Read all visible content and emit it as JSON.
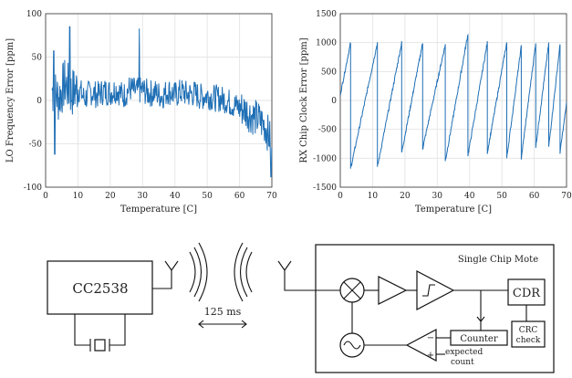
{
  "colors": {
    "series": "#1f6fb5",
    "ink": "#111111"
  },
  "chart_data": [
    {
      "type": "line",
      "title": "",
      "xlabel": "Temperature [C]",
      "ylabel": "LO Frequency Error [ppm]",
      "xlim": [
        0,
        70
      ],
      "ylim": [
        -100,
        100
      ],
      "xticks": [
        "0",
        "10",
        "20",
        "30",
        "40",
        "50",
        "60",
        "70"
      ],
      "yticks": [
        "100",
        "50",
        "0",
        "-50",
        "-100"
      ],
      "grid": true,
      "series": [
        {
          "x": [
            2,
            4,
            6,
            8,
            10,
            12,
            14,
            16,
            18,
            20,
            22,
            24,
            26,
            28,
            30,
            32,
            34,
            36,
            38,
            40,
            42,
            44,
            46,
            48,
            50,
            52,
            54,
            56,
            58,
            60,
            62,
            64,
            66,
            68,
            70
          ],
          "y": [
            12,
            3,
            20,
            8,
            15,
            2,
            10,
            6,
            11,
            9,
            13,
            5,
            14,
            10,
            12,
            8,
            9,
            5,
            11,
            6,
            10,
            7,
            8,
            4,
            6,
            3,
            2,
            0,
            -5,
            -8,
            -12,
            -18,
            -22,
            -30,
            -50
          ],
          "spikes": [
            {
              "x": 2.5,
              "y": 57
            },
            {
              "x": 2.8,
              "y": -62
            },
            {
              "x": 7.5,
              "y": 85
            },
            {
              "x": 29,
              "y": 83
            },
            {
              "x": 69.7,
              "y": -88
            }
          ]
        }
      ]
    },
    {
      "type": "line",
      "title": "",
      "xlabel": "Temperature [C]",
      "ylabel": "RX Chip Clock Error [ppm]",
      "xlim": [
        0,
        70
      ],
      "ylim": [
        -1500,
        1500
      ],
      "xticks": [
        "0",
        "10",
        "20",
        "30",
        "40",
        "50",
        "60",
        "70"
      ],
      "yticks": [
        "1500",
        "1000",
        "500",
        "0",
        "-500",
        "-1000",
        "-1500"
      ],
      "grid": true,
      "series": [
        {
          "resets": [
            {
              "x": 3.2,
              "from": 1000,
              "to": -1180
            },
            {
              "x": 11.5,
              "from": 1000,
              "to": -1150
            },
            {
              "x": 19.0,
              "from": 1000,
              "to": -900
            },
            {
              "x": 25.5,
              "from": 1000,
              "to": -830
            },
            {
              "x": 32.5,
              "from": 970,
              "to": -1050
            },
            {
              "x": 39.5,
              "from": 1150,
              "to": -950
            },
            {
              "x": 45.5,
              "from": 1000,
              "to": -900
            },
            {
              "x": 51.5,
              "from": 1000,
              "to": -1000
            },
            {
              "x": 56.0,
              "from": 940,
              "to": -1000
            },
            {
              "x": 60.5,
              "from": 1000,
              "to": -800
            },
            {
              "x": 64.5,
              "from": 990,
              "to": -800
            },
            {
              "x": 68.0,
              "from": 970,
              "to": -900
            }
          ],
          "start": {
            "x": 0,
            "y": 100
          },
          "end": {
            "x": 70,
            "y": -50
          }
        }
      ]
    }
  ],
  "diagram": {
    "transmitter_label": "CC2538",
    "interval_label": "125 ms",
    "mote_title": "Single Chip Mote",
    "cdr_label": "CDR",
    "crc_label_1": "CRC",
    "crc_label_2": "check",
    "counter_label": "Counter",
    "expected_label_1": "expected",
    "expected_label_2": "count",
    "plus_sign": "+",
    "minus_sign": "−"
  }
}
